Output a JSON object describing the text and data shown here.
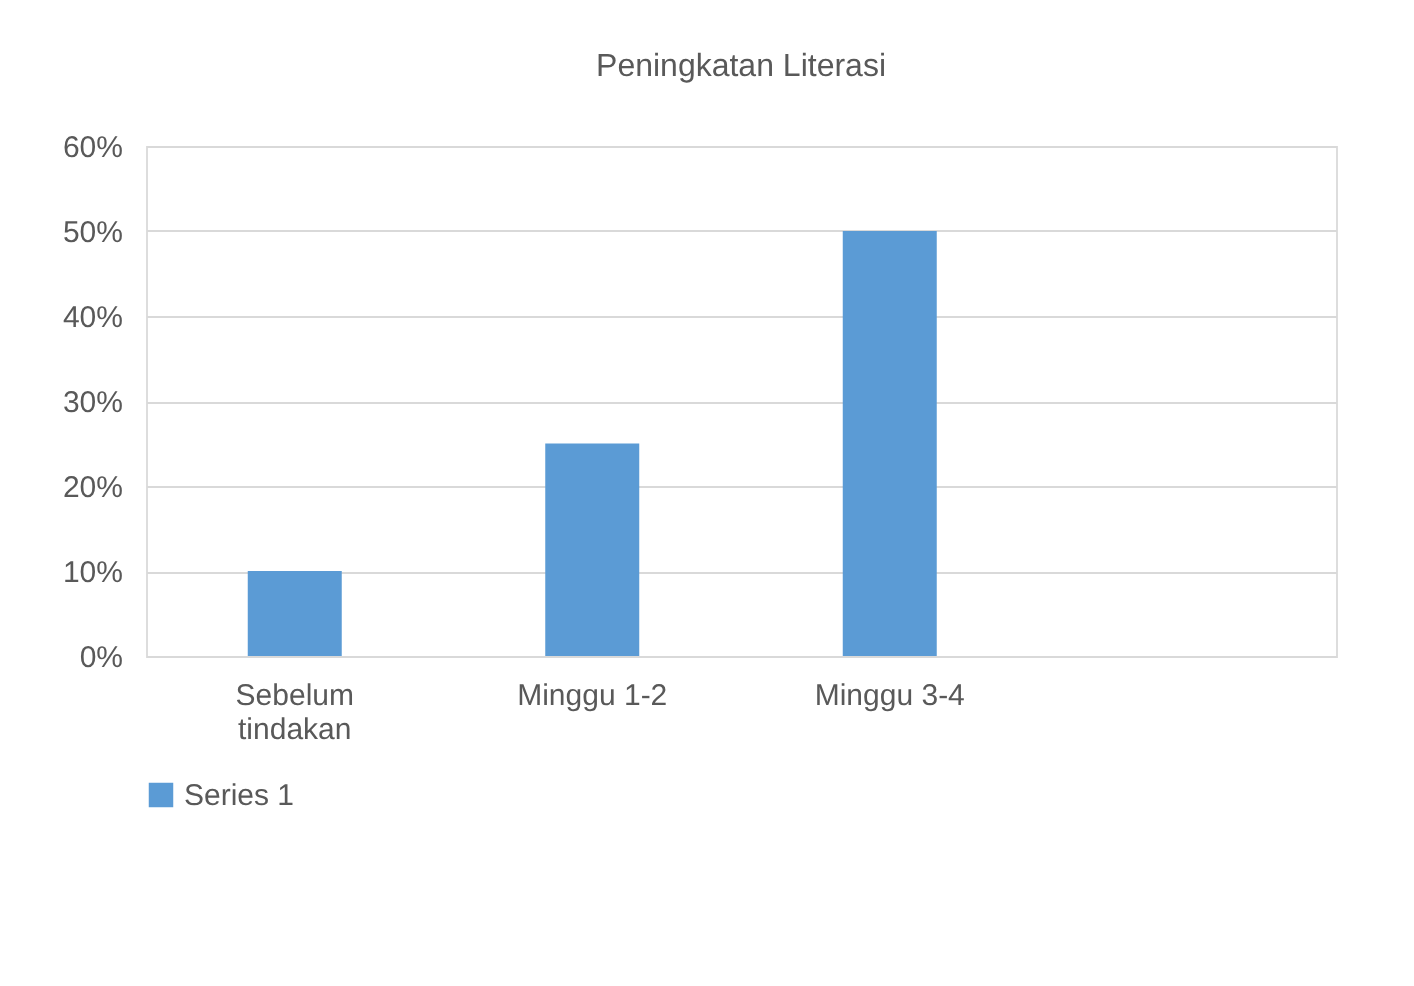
{
  "chart_data": {
    "type": "bar",
    "title": "Peningkatan Literasi",
    "categories": [
      "Sebelum tindakan",
      "Minggu 1-2",
      "Minggu 3-4",
      null
    ],
    "series": [
      {
        "name": "Series 1",
        "color": "#5b9bd5",
        "values": [
          10,
          25,
          50,
          null
        ]
      }
    ],
    "ylim": [
      0,
      60
    ],
    "yticks": [
      {
        "value": 0,
        "label": "0%"
      },
      {
        "value": 10,
        "label": "10%"
      },
      {
        "value": 20,
        "label": "20%"
      },
      {
        "value": 30,
        "label": "30%"
      },
      {
        "value": 40,
        "label": "40%"
      },
      {
        "value": 50,
        "label": "50%"
      },
      {
        "value": 60,
        "label": "60%"
      }
    ],
    "grid": "y",
    "legend": "bottom"
  }
}
